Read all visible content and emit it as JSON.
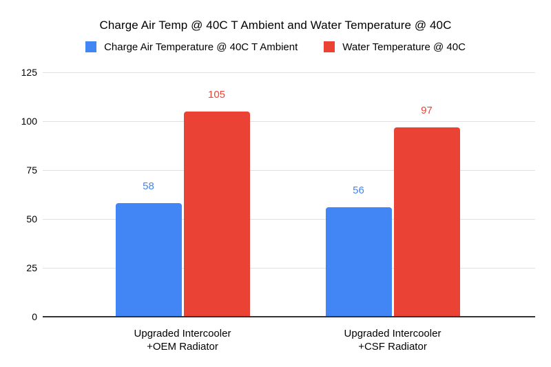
{
  "chart_data": {
    "type": "bar",
    "title": "Charge Air Temp @ 40C T Ambient and Water Temperature @ 40C",
    "categories": [
      "Upgraded Intercooler\n+OEM Radiator",
      "Upgraded Intercooler\n+CSF Radiator"
    ],
    "series": [
      {
        "name": "Charge Air Temperature @ 40C T Ambient",
        "color": "#4285F4",
        "values": [
          58,
          56
        ]
      },
      {
        "name": "Water Temperature @ 40C",
        "color": "#EA4335",
        "values": [
          105,
          97
        ]
      }
    ],
    "xlabel": "",
    "ylabel": "",
    "ylim": [
      0,
      125
    ],
    "yticks": [
      0,
      25,
      50,
      75,
      100,
      125
    ],
    "grid": true,
    "legend_position": "top",
    "data_labels": true,
    "data_label_colors_match_series": true,
    "background": "#ffffff",
    "gridline_color": "#e0e0e0",
    "axis_line_color": "#333333",
    "text_color": "#000000"
  }
}
